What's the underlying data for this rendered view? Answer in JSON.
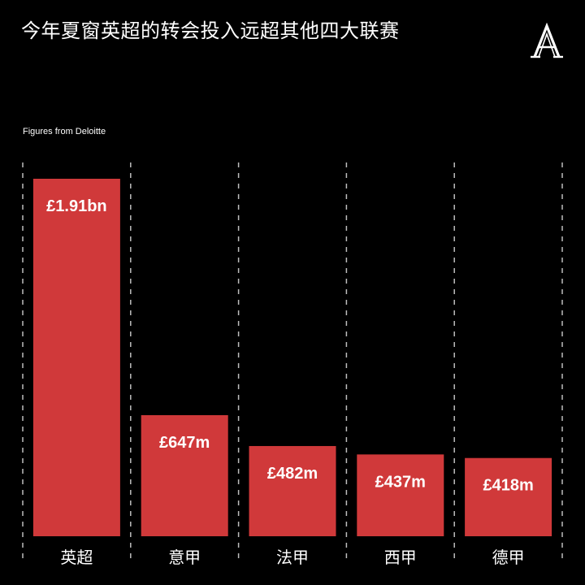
{
  "title": "今年夏窗英超的转会投入远超其他四大联赛",
  "source": "Figures from Deloitte",
  "logo": {
    "icon": "athletic-a-logo-icon",
    "letter": "A"
  },
  "colors": {
    "background": "#000000",
    "bar": "#d0393a",
    "text": "#ffffff",
    "grid": "#bdbdbd"
  },
  "chart_data": {
    "type": "bar",
    "categories": [
      "英超",
      "意甲",
      "法甲",
      "西甲",
      "德甲"
    ],
    "values": [
      1910,
      647,
      482,
      437,
      418
    ],
    "value_unit": "£m",
    "value_labels": [
      "£1.91bn",
      "£647m",
      "£482m",
      "£437m",
      "£418m"
    ],
    "title": "今年夏窗英超的转会投入远超其他四大联赛",
    "xlabel": "",
    "ylabel": "",
    "ylim": [
      0,
      1910
    ],
    "grid": "vertical dashed separators",
    "legend": "none"
  }
}
